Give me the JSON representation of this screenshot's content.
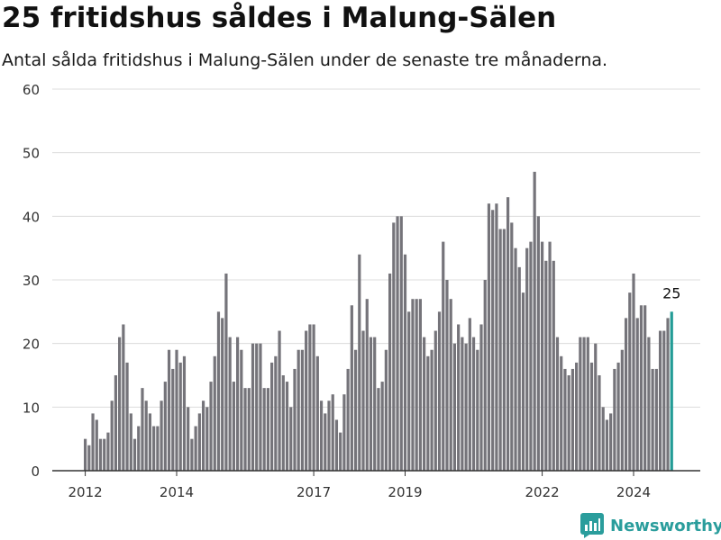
{
  "header": {
    "title": "25 fritidshus såldes i Malung-Sälen",
    "subtitle": "Antal sålda fritidshus i Malung-Sälen under de senaste tre månaderna."
  },
  "brand": {
    "name": "Newsworthy",
    "icon": "newsworthy-logo-icon",
    "color": "#2a9d9c"
  },
  "colors": {
    "bar": "#75747a",
    "highlight": "#239c96",
    "grid": "#dcdcdc",
    "axis": "#333333"
  },
  "chart_data": {
    "type": "bar",
    "title": "25 fritidshus såldes i Malung-Sälen",
    "subtitle": "Antal sålda fritidshus i Malung-Sälen under de senaste tre månaderna.",
    "xlabel": "",
    "ylabel": "",
    "ylim": [
      0,
      60
    ],
    "yticks": [
      "0",
      "10",
      "20",
      "30",
      "40",
      "50",
      "60"
    ],
    "xticks": [
      {
        "label": "2012",
        "index": 0
      },
      {
        "label": "2014",
        "index": 24
      },
      {
        "label": "2017",
        "index": 60
      },
      {
        "label": "2019",
        "index": 84
      },
      {
        "label": "2022",
        "index": 120
      },
      {
        "label": "2024",
        "index": 144
      }
    ],
    "grid": true,
    "legend": "none",
    "highlight_label": "25",
    "values": [
      5,
      4,
      9,
      8,
      5,
      5,
      6,
      11,
      15,
      21,
      23,
      17,
      9,
      5,
      7,
      13,
      11,
      9,
      7,
      7,
      11,
      14,
      19,
      16,
      19,
      17,
      18,
      10,
      5,
      7,
      9,
      11,
      10,
      14,
      18,
      25,
      24,
      31,
      21,
      14,
      21,
      19,
      13,
      13,
      20,
      20,
      20,
      13,
      13,
      17,
      18,
      22,
      15,
      14,
      10,
      16,
      19,
      19,
      22,
      23,
      23,
      18,
      11,
      9,
      11,
      12,
      8,
      6,
      12,
      16,
      26,
      19,
      34,
      22,
      27,
      21,
      21,
      13,
      14,
      19,
      31,
      39,
      40,
      40,
      34,
      25,
      27,
      27,
      27,
      21,
      18,
      19,
      22,
      25,
      36,
      30,
      27,
      20,
      23,
      21,
      20,
      24,
      21,
      19,
      23,
      30,
      42,
      41,
      42,
      38,
      38,
      43,
      39,
      35,
      32,
      28,
      35,
      36,
      47,
      40,
      36,
      33,
      36,
      33,
      21,
      18,
      16,
      15,
      16,
      17,
      21,
      21,
      21,
      17,
      20,
      15,
      10,
      8,
      9,
      16,
      17,
      19,
      24,
      28,
      31,
      24,
      26,
      26,
      21,
      16,
      16,
      22,
      22,
      24,
      25
    ]
  }
}
